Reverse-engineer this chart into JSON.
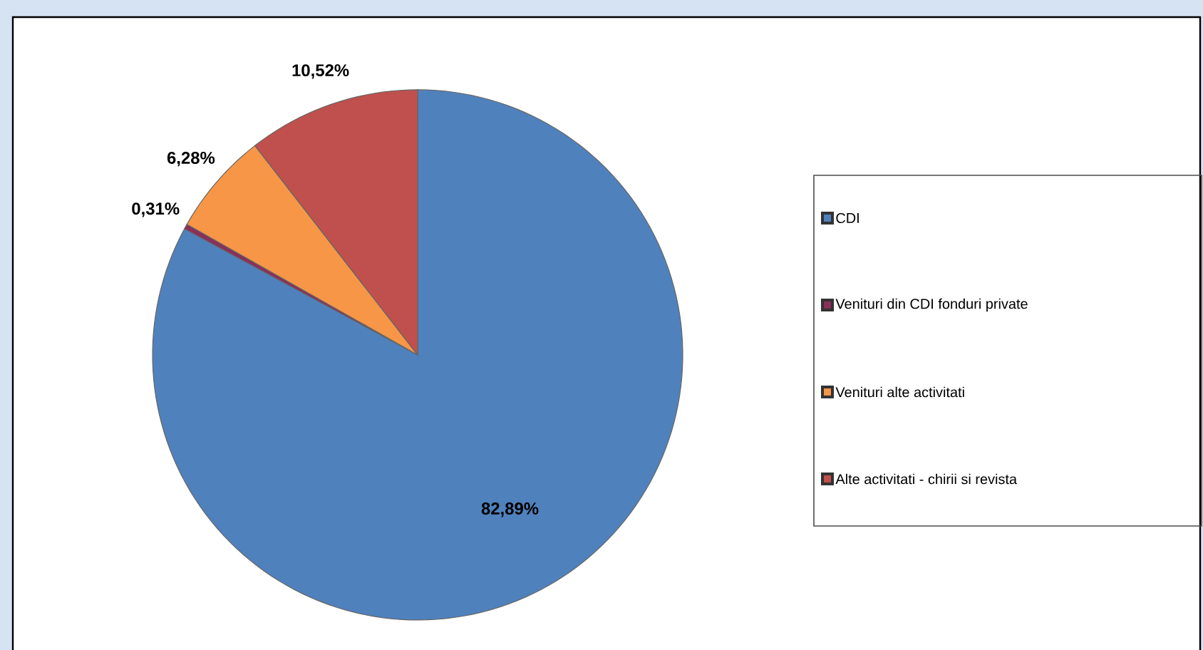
{
  "chart_data": {
    "type": "pie",
    "categories": [
      "CDI",
      "Venituri din CDI fonduri private",
      "Venituri alte activitati",
      "Alte activitati - chirii si revista"
    ],
    "values": [
      82.89,
      0.31,
      6.28,
      10.52
    ],
    "colors": [
      "#4f81bd",
      "#8b2f5a",
      "#f79646",
      "#c0504d"
    ],
    "value_labels": [
      "82,89%",
      "0,31%",
      "6,28%",
      "10,52%"
    ],
    "legend": "right"
  }
}
